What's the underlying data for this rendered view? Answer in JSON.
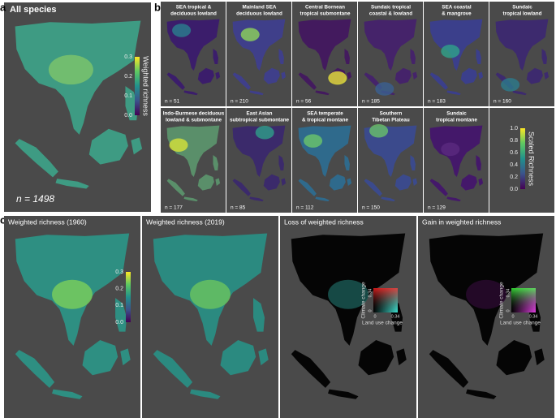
{
  "panel_a": {
    "label": "a",
    "title": "All species",
    "legend": {
      "title": "Weighted richness",
      "ticks": [
        "0.0",
        "0.1",
        "0.2",
        "0.3"
      ]
    },
    "n": "n = 1498"
  },
  "panel_b": {
    "label": "b",
    "maps": [
      {
        "title": [
          "SEA tropical &",
          "deciduous lowland"
        ],
        "n": "n = 51"
      },
      {
        "title": [
          "Mainland SEA",
          "deciduous lowland"
        ],
        "n": "n = 210"
      },
      {
        "title": [
          "Central Bornean",
          "tropical submontane"
        ],
        "n": "n = 56"
      },
      {
        "title": [
          "Sundaic tropical",
          "coastal & lowland"
        ],
        "n": "n = 185"
      },
      {
        "title": [
          "SEA coastal",
          "& mangrove"
        ],
        "n": "n = 183"
      },
      {
        "title": [
          "Sundaic",
          "tropical lowland"
        ],
        "n": "n = 160"
      },
      {
        "title": [
          "Indo-Burmese deciduous",
          "lowland & submontane"
        ],
        "n": "n = 177"
      },
      {
        "title": [
          "East Asian",
          "subtropical submontane"
        ],
        "n": "n = 85"
      },
      {
        "title": [
          "SEA temperate",
          "& tropical montane"
        ],
        "n": "n = 112"
      },
      {
        "title": [
          "Southern",
          "Tibetan Plateau"
        ],
        "n": "n = 150"
      },
      {
        "title": [
          "Sundaic",
          "tropical montane"
        ],
        "n": "n = 129"
      }
    ],
    "legend": {
      "title": "Scaled Richness",
      "ticks": [
        "0.0",
        "0.2",
        "0.4",
        "0.6",
        "0.8",
        "1.0"
      ]
    }
  },
  "panel_c": {
    "label": "c",
    "maps": [
      {
        "title": "Weighted richness (1960)"
      },
      {
        "title": "Weighted richness (2019)"
      },
      {
        "title": "Loss of weighted richness"
      },
      {
        "title": "Gain in weighted richness"
      }
    ],
    "legend": {
      "ticks": [
        "0.0",
        "0.1",
        "0.2",
        "0.3"
      ]
    },
    "bivariate": [
      {
        "y_label": "Climate change",
        "x_label": "Land use change",
        "y_ticks": [
          "0",
          "0.34"
        ],
        "x_ticks": [
          "0",
          "0.34"
        ]
      },
      {
        "y_label": "Climate change",
        "x_label": "Land use change",
        "y_ticks": [
          "0",
          "0.34"
        ],
        "x_ticks": [
          "0",
          "0.34"
        ]
      }
    ]
  }
}
